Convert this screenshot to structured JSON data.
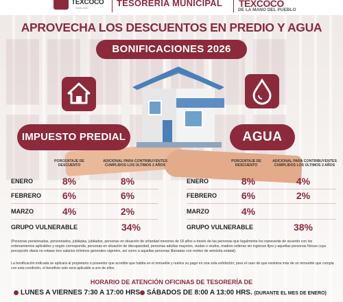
{
  "header": {
    "left_logo_text": "TEXCOCO",
    "left_logo_sub": "2025-2027",
    "tesoreria": "TESORERÍA MUNICIPAL",
    "right_logo_text": "TEXCOCO",
    "right_logo_sub": "DE LA MANO DEL PUEBLO"
  },
  "title": "APROVECHA LOS DESCUENTOS EN PREDIO Y AGUA",
  "subtitle": "BONIFICACIONES 2026",
  "colors": {
    "primary": "#8c2a3c",
    "background": "#f4f0ee"
  },
  "icons": {
    "predial": "house-icon",
    "agua": "water-drop-icon"
  },
  "predial": {
    "label": "IMPUESTO PREDIAL",
    "col1": "PORCENTAJE DE DESCUENTO",
    "col2": "ADICIONAL PARA CONTRIBUYENTES CUMPLIDOS LOS ÚLTIMOS 2 AÑOS",
    "rows": [
      {
        "label": "ENERO",
        "v1": "8%",
        "v2": "8%"
      },
      {
        "label": "FEBRERO",
        "v1": "6%",
        "v2": "6%"
      },
      {
        "label": "MARZO",
        "v1": "4%",
        "v2": "2%"
      }
    ],
    "vulnerable_label": "GRUPO VULNERABLE",
    "vulnerable_value": "34%"
  },
  "agua": {
    "label": "AGUA",
    "col1": "PORCENTAJE DE DESCUENTO",
    "col2": "ADICIONAL PARA CONTRIBUYENTES CUMPLIDOS LOS ÚLTIMOS 2 AÑOS",
    "rows": [
      {
        "label": "ENERO",
        "v1": "8%",
        "v2": "4%"
      },
      {
        "label": "FEBRERO",
        "v1": "6%",
        "v2": "2%"
      },
      {
        "label": "MARZO",
        "v1": "4%",
        "v2": ""
      }
    ],
    "vulnerable_label": "GRUPO VULNERABLE",
    "vulnerable_value": "38%"
  },
  "notes": {
    "note1": "(Personas pensionadas, pensionados, jubiladas, jubilados, personas en situación de orfandad menores de 18 años a través de las personas que legalmente los represente de acuerdo con los ordenamientos aplicables y según corresponda, personas en situación de discapacidad, personas adultas mayores, viudas o viudos, madres solteras sin ingresos fijos y aquellas personas físicas cuya percepción diaria no rebase tres salarios mínimos generales vigentes, así como a aquellas personas liberadas con motivo de amnistía estatal).",
    "note2": "La bonificación indicada se aplicará al propietario o poseedor que acredite que habita en el inmueble y realice su pago en una sola exhibición; para el caso de que existiera más de un inmueble que cumpla con esta condición, el beneficio solo será aplicable a uno de ellos."
  },
  "horario": {
    "title": "HORARIO DE ATENCIÓN OFICINAS DE TESORERÍA DE",
    "weekdays": "LUNES A VIERNES 7:30 A 17:00 HRS",
    "saturdays": "SÁBADOS DE 8:00 A 13:00 HRS.",
    "saturdays_note": "(DURANTE EL MES DE ENERO)"
  }
}
